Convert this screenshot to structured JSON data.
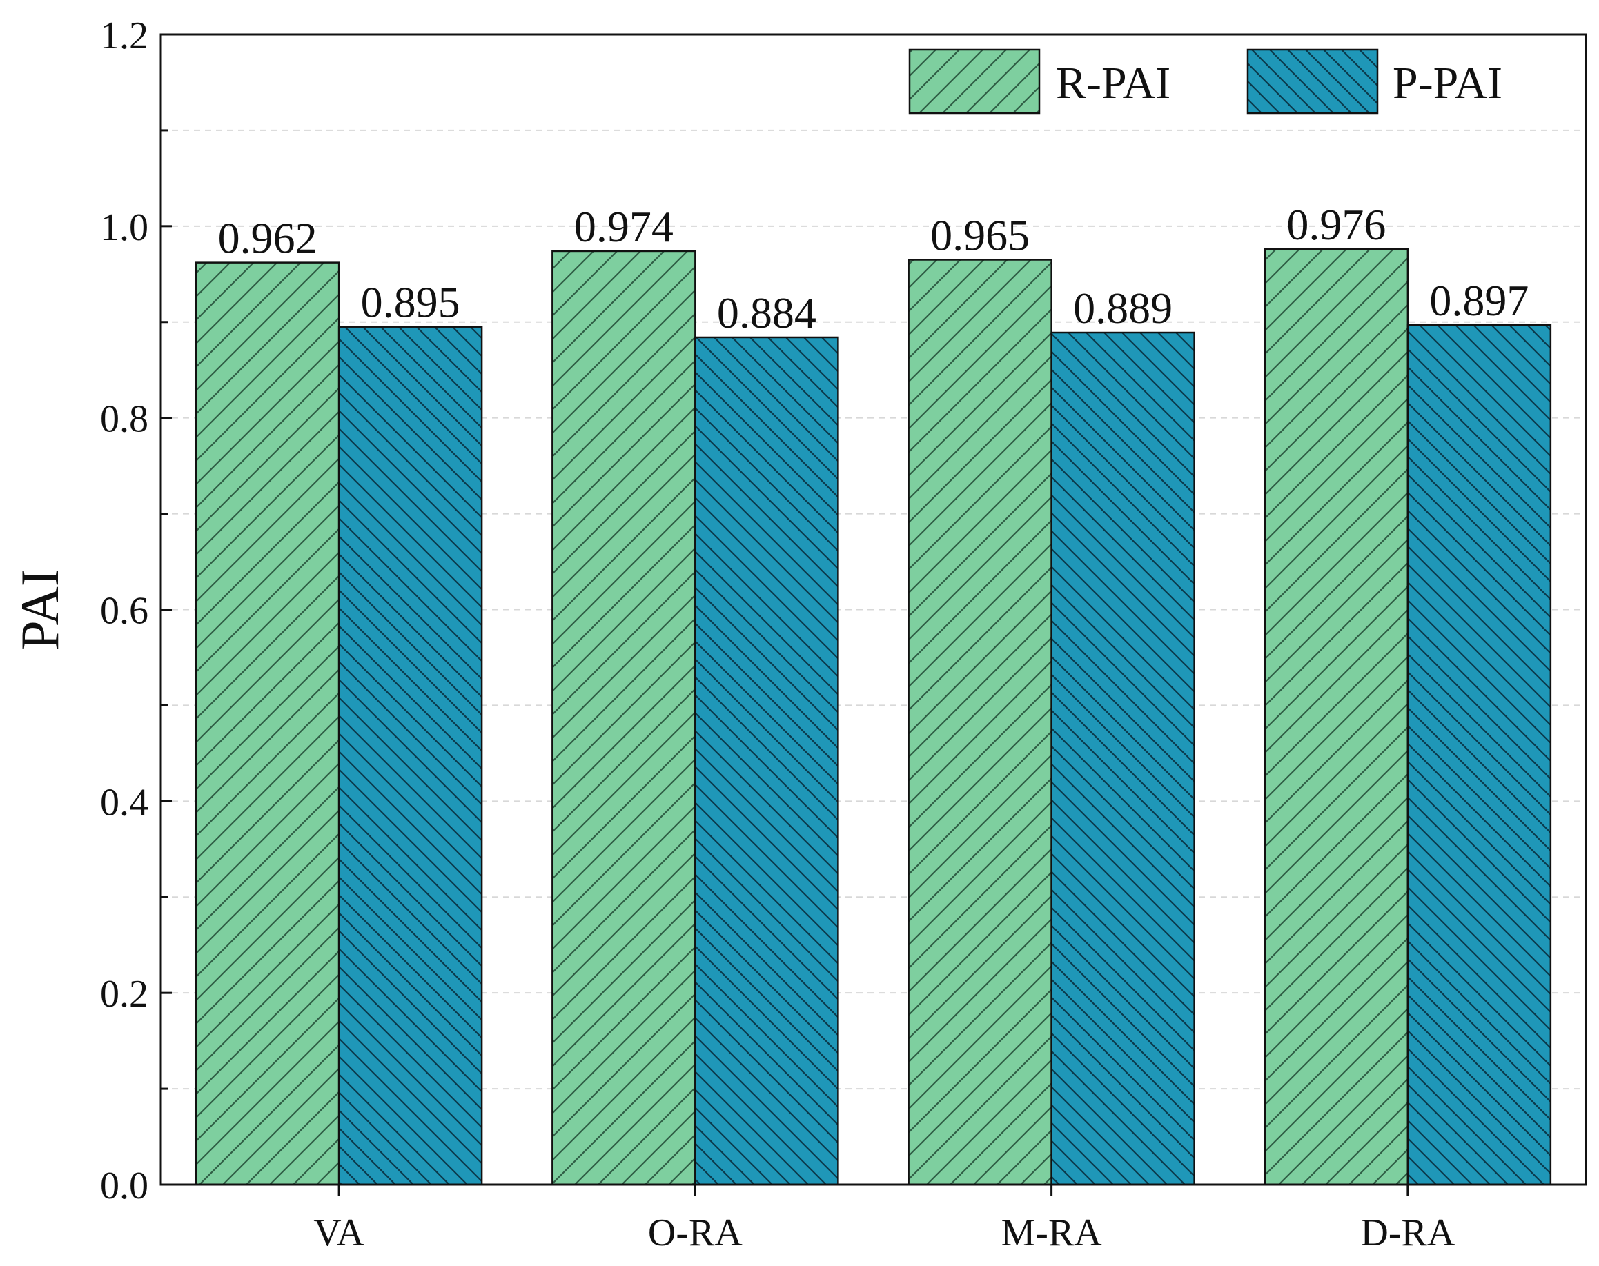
{
  "chart_data": {
    "type": "bar",
    "title": "",
    "xlabel": "",
    "ylabel": "PAI",
    "categories": [
      "VA",
      "O-RA",
      "M-RA",
      "D-RA"
    ],
    "series": [
      {
        "name": "R-PAI",
        "values": [
          0.962,
          0.974,
          0.965,
          0.976
        ],
        "color": "#7ecf9f",
        "hatch": "forward-diagonal"
      },
      {
        "name": "P-PAI",
        "values": [
          0.895,
          0.884,
          0.889,
          0.897
        ],
        "color": "#1f97b8",
        "hatch": "back-diagonal"
      }
    ],
    "data_labels": [
      [
        "0.962",
        "0.974",
        "0.965",
        "0.976"
      ],
      [
        "0.895",
        "0.884",
        "0.889",
        "0.897"
      ]
    ],
    "ylim": [
      0,
      1.2
    ],
    "yticks": [
      "0.0",
      "0.2",
      "0.4",
      "0.6",
      "0.8",
      "1.0",
      "1.2"
    ],
    "grid": true,
    "legend_position": "top-right"
  }
}
